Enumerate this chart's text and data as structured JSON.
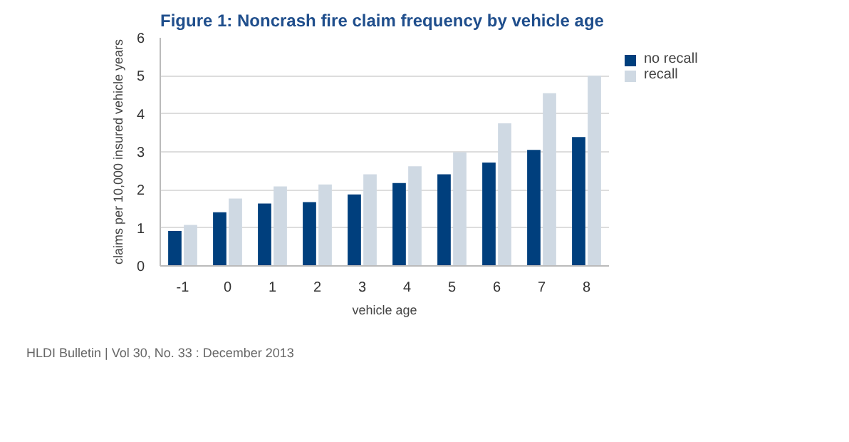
{
  "chart_data": {
    "type": "bar",
    "title": "Figure 1: Noncrash fire claim frequency by vehicle age",
    "xlabel": "vehicle age",
    "ylabel": "claims per 10,000 insured vehicle years",
    "categories": [
      "-1",
      "0",
      "1",
      "2",
      "3",
      "4",
      "5",
      "6",
      "7",
      "8"
    ],
    "series": [
      {
        "name": "no recall",
        "color": "#003f7d",
        "values": [
          0.92,
          1.41,
          1.64,
          1.68,
          1.88,
          2.18,
          2.41,
          2.72,
          3.05,
          3.39
        ]
      },
      {
        "name": "recall",
        "color": "#cfd9e3",
        "values": [
          1.08,
          1.77,
          2.09,
          2.14,
          2.41,
          2.62,
          2.99,
          3.75,
          4.54,
          5.0
        ]
      }
    ],
    "ylim": [
      0,
      6
    ],
    "yticks": [
      0,
      1,
      2,
      3,
      4,
      5,
      6
    ],
    "grid": "y",
    "legend": "top right",
    "annotations": [
      "HLDI Bulletin | Vol 30, No. 33 : December 2013"
    ]
  }
}
